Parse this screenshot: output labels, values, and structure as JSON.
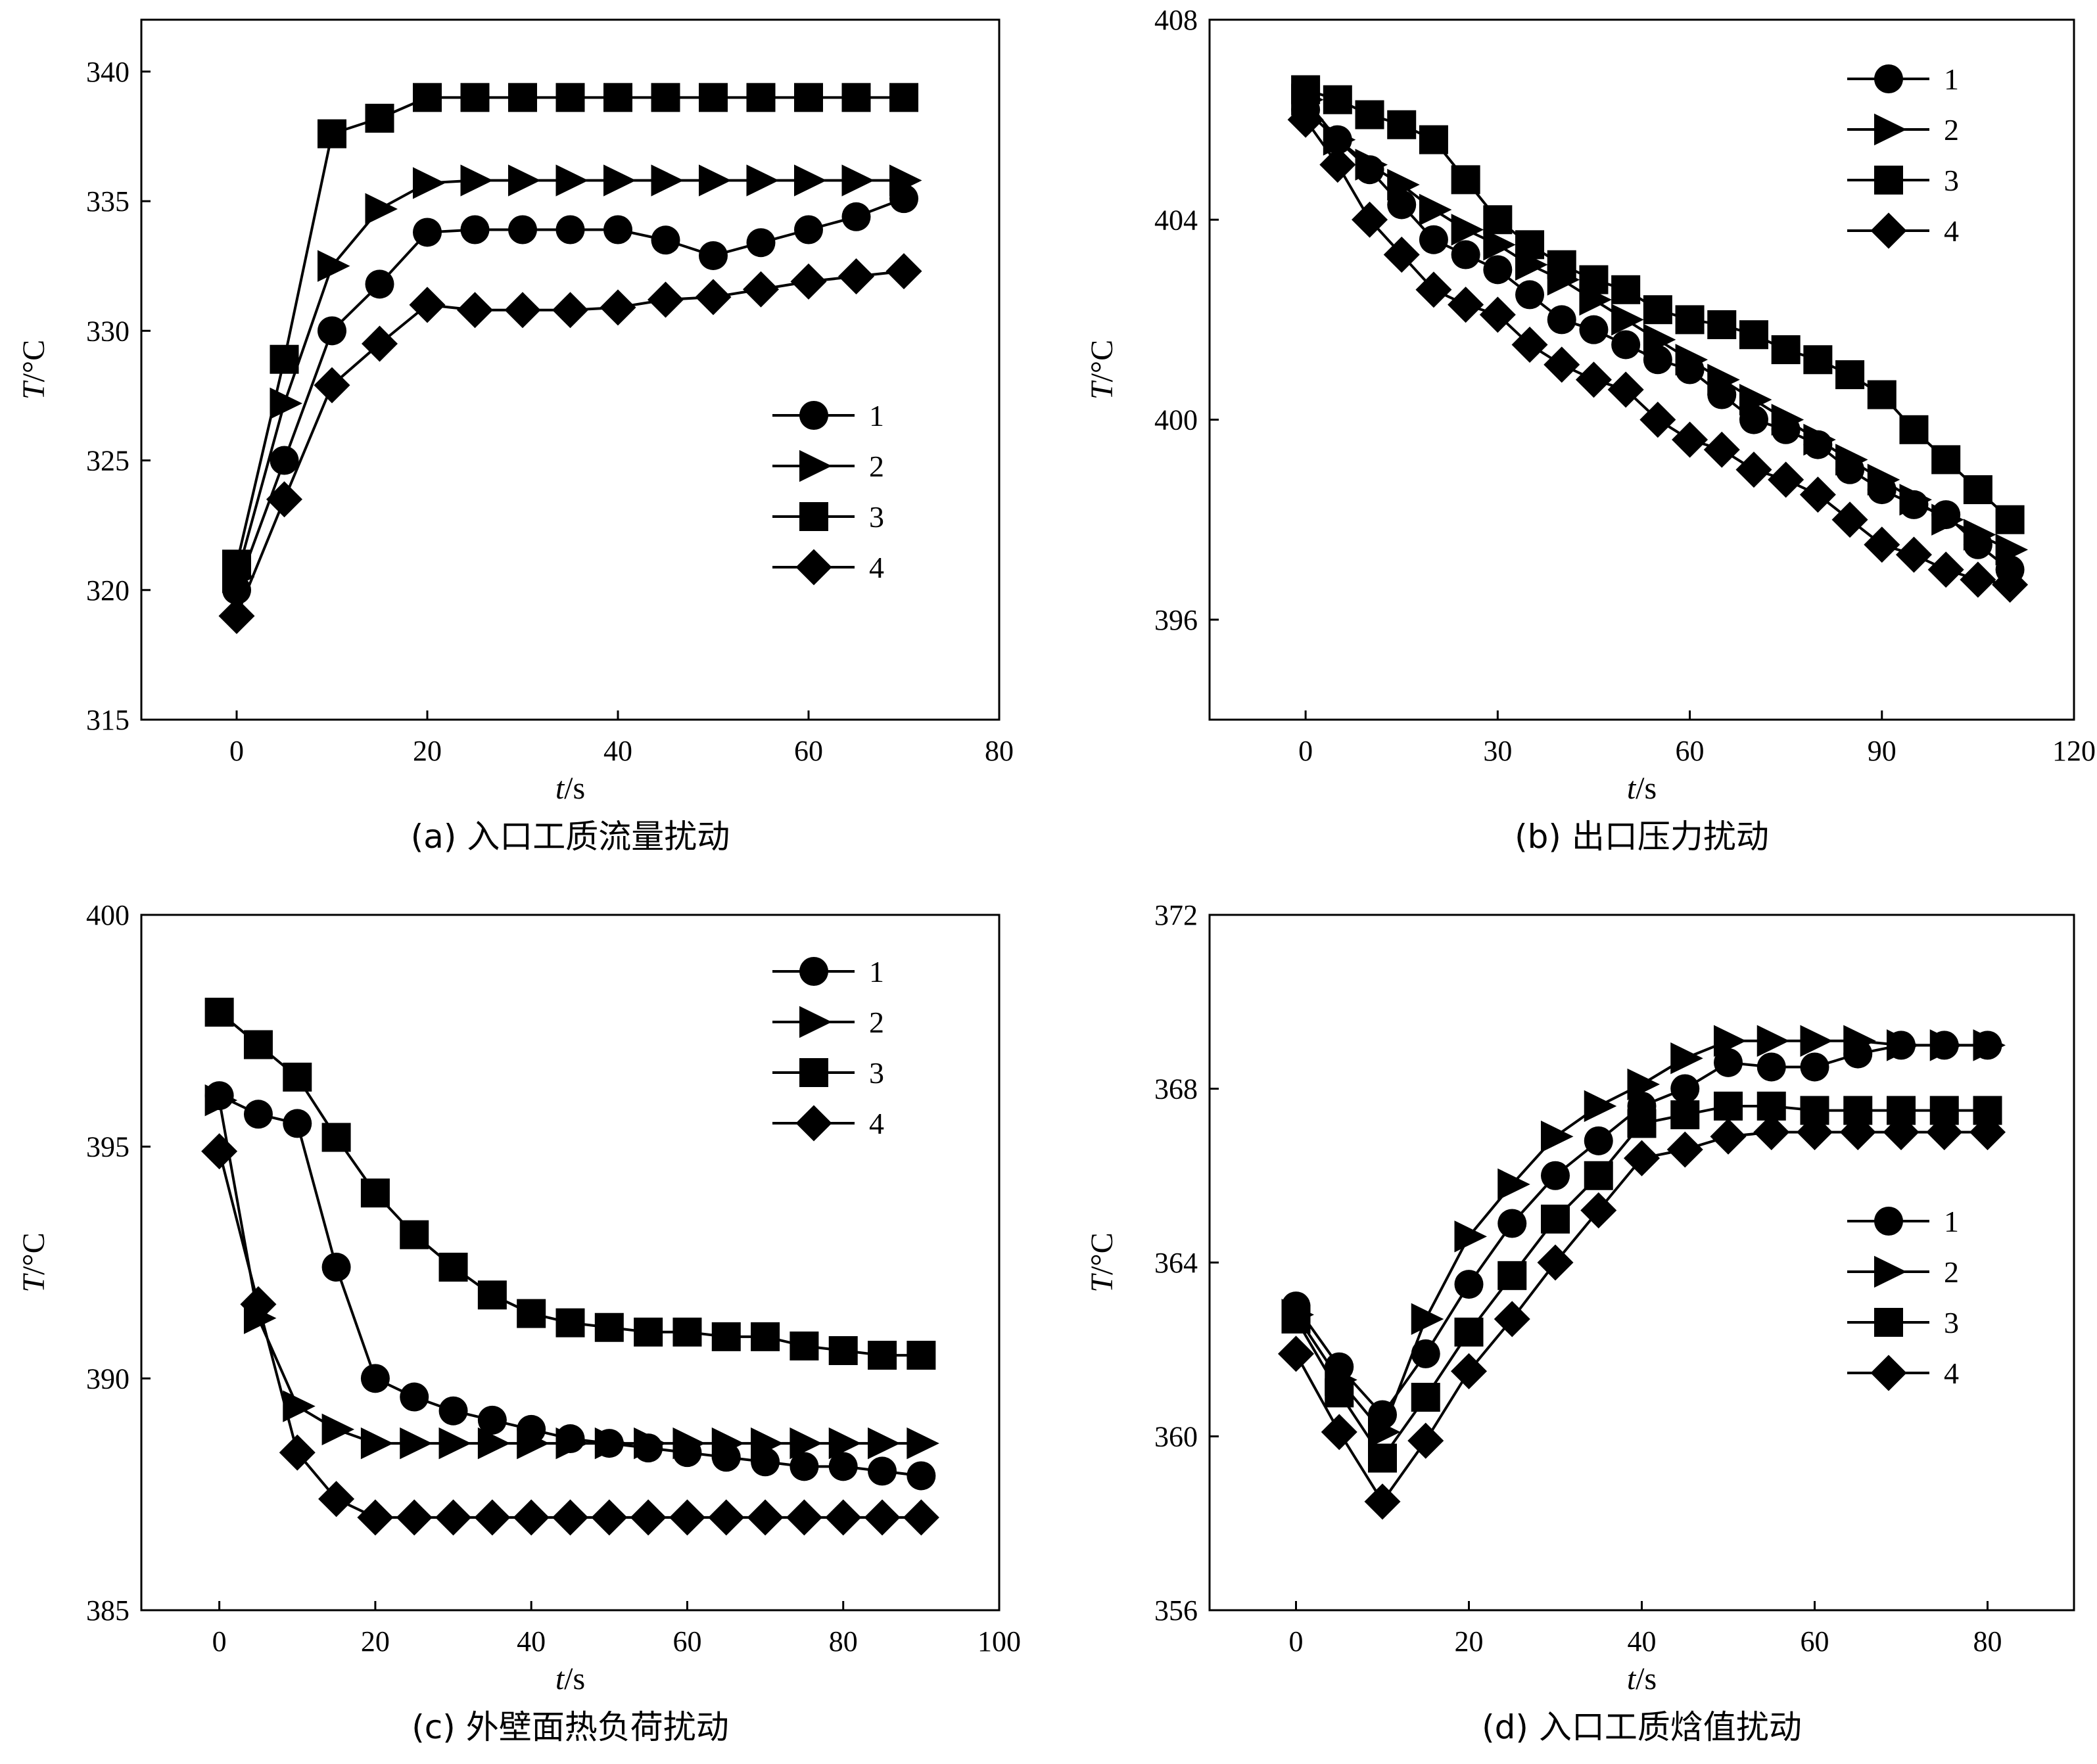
{
  "chart_data": [
    {
      "type": "line",
      "caption": "(a) 入口工质流量扰动",
      "xlabel": {
        "var": "t",
        "unit": "/s"
      },
      "ylabel": {
        "var": "T",
        "unit": "/°C"
      },
      "xlim": [
        -10,
        80
      ],
      "ylim": [
        315,
        342
      ],
      "xticks": [
        0,
        20,
        40,
        60,
        80
      ],
      "yticks": [
        315,
        320,
        325,
        330,
        335,
        340
      ],
      "legend_position": "center-right",
      "x": [
        0,
        5,
        10,
        15,
        20,
        25,
        30,
        35,
        40,
        45,
        50,
        55,
        60,
        65,
        70
      ],
      "series": [
        {
          "name": "1",
          "marker": "circle",
          "values": [
            320,
            325,
            330,
            331.8,
            333.8,
            333.9,
            333.9,
            333.9,
            333.9,
            333.5,
            332.9,
            333.4,
            333.9,
            334.4,
            335.1
          ]
        },
        {
          "name": "2",
          "marker": "triangle",
          "values": [
            320.5,
            327.2,
            332.5,
            334.7,
            335.7,
            335.8,
            335.8,
            335.8,
            335.8,
            335.8,
            335.8,
            335.8,
            335.8,
            335.8,
            335.8
          ]
        },
        {
          "name": "3",
          "marker": "square",
          "values": [
            321,
            328.9,
            337.6,
            338.2,
            339,
            339,
            339,
            339,
            339,
            339,
            339,
            339,
            339,
            339,
            339
          ]
        },
        {
          "name": "4",
          "marker": "diamond",
          "values": [
            319,
            323.5,
            327.9,
            329.5,
            331,
            330.8,
            330.8,
            330.8,
            330.9,
            331.2,
            331.3,
            331.6,
            331.9,
            332.1,
            332.3
          ]
        }
      ]
    },
    {
      "type": "line",
      "caption": "(b) 出口压力扰动",
      "xlabel": {
        "var": "t",
        "unit": "/s"
      },
      "ylabel": {
        "var": "T",
        "unit": "/°C"
      },
      "xlim": [
        -15,
        120
      ],
      "ylim": [
        394,
        408
      ],
      "xticks": [
        0,
        30,
        60,
        90,
        120
      ],
      "yticks": [
        396,
        400,
        404,
        408
      ],
      "legend_position": "top-right",
      "x": [
        0,
        5,
        10,
        15,
        20,
        25,
        30,
        35,
        40,
        45,
        50,
        55,
        60,
        65,
        70,
        75,
        80,
        85,
        90,
        95,
        100,
        105,
        110
      ],
      "series": [
        {
          "name": "1",
          "marker": "circle",
          "values": [
            406.2,
            405.6,
            405,
            404.3,
            403.6,
            403.3,
            403.0,
            402.5,
            402.0,
            401.8,
            401.5,
            401.2,
            401.0,
            400.5,
            400.0,
            399.8,
            399.5,
            399.0,
            398.6,
            398.3,
            398.1,
            397.5,
            397.0
          ]
        },
        {
          "name": "2",
          "marker": "triangle",
          "values": [
            406.4,
            405.6,
            405.1,
            404.7,
            404.2,
            403.8,
            403.5,
            403.1,
            402.8,
            402.4,
            402.0,
            401.6,
            401.2,
            400.8,
            400.4,
            400.0,
            399.6,
            399.2,
            398.8,
            398.4,
            398.0,
            397.7,
            397.4
          ]
        },
        {
          "name": "3",
          "marker": "square",
          "values": [
            406.6,
            406.4,
            406.1,
            405.9,
            405.6,
            404.8,
            404.0,
            403.5,
            403.1,
            402.8,
            402.6,
            402.2,
            402.0,
            401.9,
            401.7,
            401.4,
            401.2,
            400.9,
            400.5,
            399.8,
            399.2,
            398.6,
            398.0
          ]
        },
        {
          "name": "4",
          "marker": "diamond",
          "values": [
            406.0,
            405.1,
            404.0,
            403.3,
            402.6,
            402.3,
            402.1,
            401.5,
            401.1,
            400.8,
            400.6,
            400.0,
            399.6,
            399.4,
            399.0,
            398.8,
            398.5,
            398.0,
            397.5,
            397.3,
            397.0,
            396.8,
            396.7
          ]
        }
      ]
    },
    {
      "type": "line",
      "caption": "(c) 外壁面热负荷扰动",
      "xlabel": {
        "var": "t",
        "unit": "/s"
      },
      "ylabel": {
        "var": "T",
        "unit": "/°C"
      },
      "xlim": [
        -10,
        100
      ],
      "ylim": [
        385,
        400
      ],
      "xticks": [
        0,
        20,
        40,
        60,
        80,
        100
      ],
      "yticks": [
        385,
        390,
        395,
        400
      ],
      "legend_position": "top-right",
      "x": [
        0,
        5,
        10,
        15,
        20,
        25,
        30,
        35,
        40,
        45,
        50,
        55,
        60,
        65,
        70,
        75,
        80,
        85,
        90
      ],
      "series": [
        {
          "name": "1",
          "marker": "circle",
          "values": [
            396.1,
            395.7,
            395.5,
            392.4,
            390,
            389.6,
            389.3,
            389.1,
            388.9,
            388.7,
            388.6,
            388.5,
            388.4,
            388.3,
            388.2,
            388.1,
            388.1,
            388.0,
            387.9
          ]
        },
        {
          "name": "2",
          "marker": "triangle",
          "values": [
            396.0,
            391.3,
            389.4,
            388.9,
            388.6,
            388.6,
            388.6,
            388.6,
            388.6,
            388.6,
            388.6,
            388.6,
            388.6,
            388.6,
            388.6,
            388.6,
            388.6,
            388.6,
            388.6
          ]
        },
        {
          "name": "3",
          "marker": "square",
          "values": [
            397.9,
            397.2,
            396.5,
            395.2,
            394.0,
            393.1,
            392.4,
            391.8,
            391.4,
            391.2,
            391.1,
            391.0,
            391.0,
            390.9,
            390.9,
            390.7,
            390.6,
            390.5,
            390.5
          ]
        },
        {
          "name": "4",
          "marker": "diamond",
          "values": [
            394.9,
            391.6,
            388.4,
            387.4,
            387.0,
            387.0,
            387.0,
            387.0,
            387.0,
            387.0,
            387.0,
            387.0,
            387.0,
            387.0,
            387.0,
            387.0,
            387.0,
            387.0,
            387.0
          ]
        }
      ]
    },
    {
      "type": "line",
      "caption": "(d) 入口工质焓值扰动",
      "xlabel": {
        "var": "t",
        "unit": "/s"
      },
      "ylabel": {
        "var": "T",
        "unit": "/°C"
      },
      "xlim": [
        -10,
        90
      ],
      "ylim": [
        356,
        372
      ],
      "xticks": [
        0,
        20,
        40,
        60,
        80
      ],
      "yticks": [
        356,
        360,
        364,
        368,
        372
      ],
      "legend_position": "center-right",
      "x": [
        0,
        5,
        10,
        15,
        20,
        25,
        30,
        35,
        40,
        45,
        50,
        55,
        60,
        65,
        70,
        75,
        80
      ],
      "series": [
        {
          "name": "1",
          "marker": "circle",
          "values": [
            363.0,
            361.6,
            360.5,
            361.9,
            363.5,
            364.9,
            366.0,
            366.8,
            367.6,
            368.0,
            368.6,
            368.5,
            368.5,
            368.8,
            369.0,
            369.0,
            369.0
          ]
        },
        {
          "name": "2",
          "marker": "triangle",
          "values": [
            362.8,
            361.3,
            360.1,
            362.7,
            364.6,
            365.8,
            366.9,
            367.6,
            368.1,
            368.7,
            369.1,
            369.1,
            369.1,
            369.1,
            369.0,
            369.0,
            369.0
          ]
        },
        {
          "name": "3",
          "marker": "square",
          "values": [
            362.7,
            361.0,
            359.5,
            360.9,
            362.4,
            363.7,
            365.0,
            366.0,
            367.2,
            367.4,
            367.6,
            367.6,
            367.5,
            367.5,
            367.5,
            367.5,
            367.5
          ]
        },
        {
          "name": "4",
          "marker": "diamond",
          "values": [
            361.9,
            360.1,
            358.5,
            359.9,
            361.5,
            362.7,
            364.0,
            365.2,
            366.4,
            366.6,
            366.9,
            367.0,
            367.0,
            367.0,
            367.0,
            367.0,
            367.0
          ]
        }
      ]
    }
  ]
}
